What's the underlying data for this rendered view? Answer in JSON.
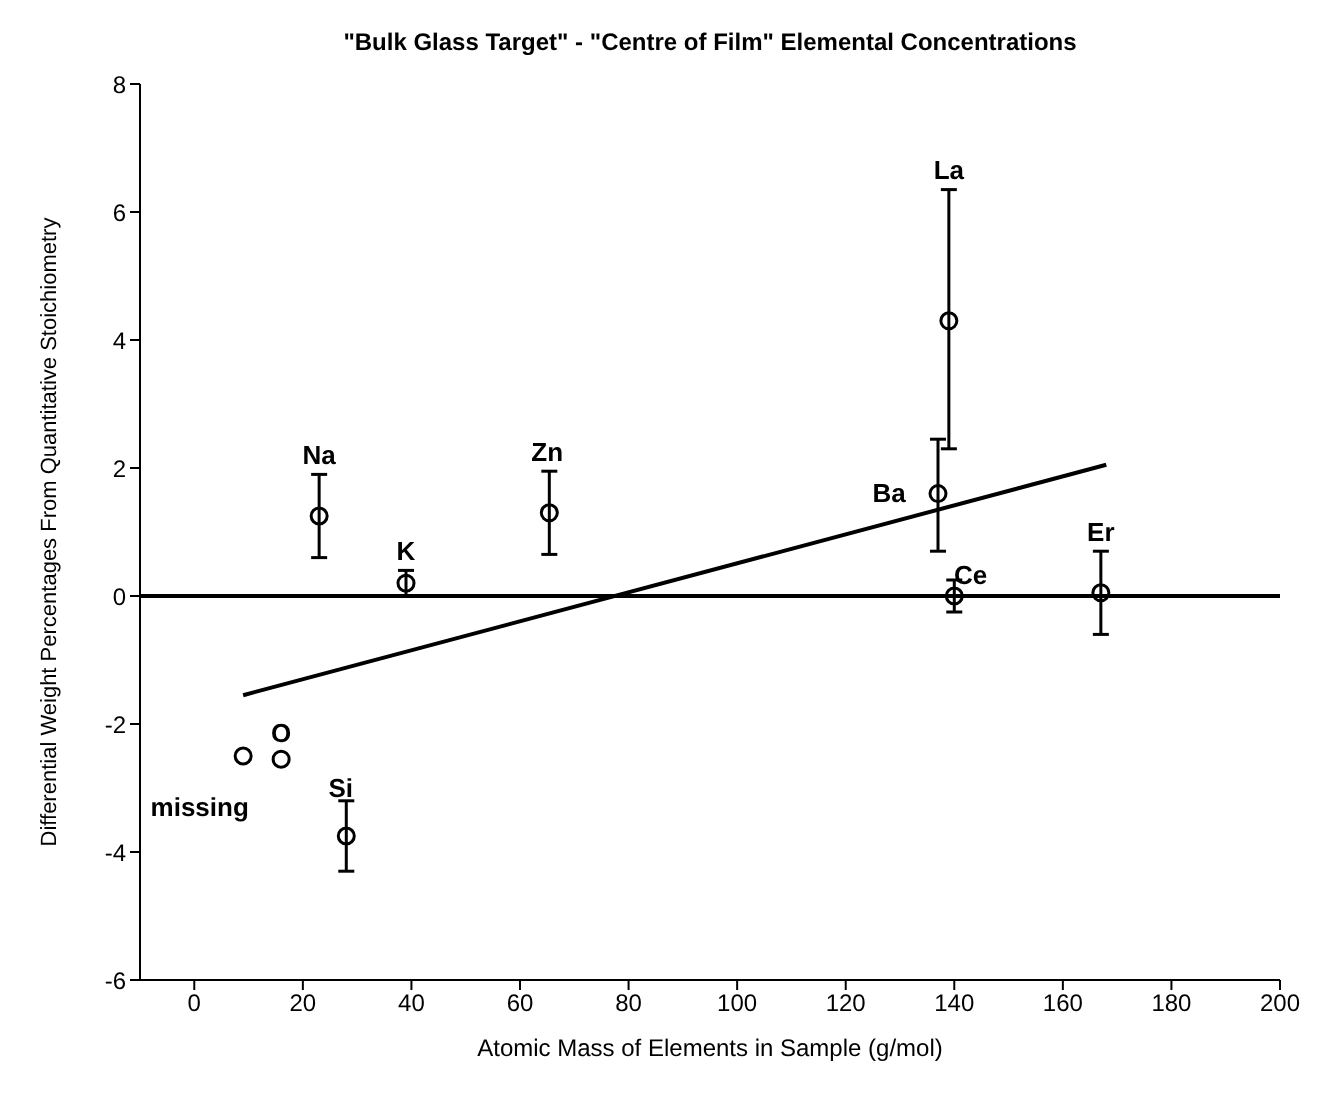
{
  "chart_data": {
    "type": "scatter",
    "title": "\"Bulk Glass Target\" - \"Centre of Film\" Elemental Concentrations",
    "xlabel": "Atomic Mass of Elements in Sample (g/mol)",
    "ylabel": "Differential Weight Percentages From Quantitative Stoichiometry",
    "xlim": [
      -10,
      200
    ],
    "xticks": [
      0,
      20,
      40,
      60,
      80,
      100,
      120,
      140,
      160,
      180,
      200
    ],
    "ylim": [
      -6,
      8
    ],
    "yticks": [
      -6,
      -4,
      -2,
      0,
      2,
      4,
      6,
      8
    ],
    "marker": "circle",
    "series": [
      {
        "color": "#000000",
        "x": [
          9,
          16,
          23,
          28,
          39,
          65.4,
          137,
          139,
          140,
          167
        ],
        "values": [
          -2.5,
          -2.55,
          1.25,
          -3.75,
          0.2,
          1.3,
          1.6,
          4.3,
          0,
          0.05
        ],
        "errors": [
          null,
          null,
          [
            0.6,
            1.9
          ],
          [
            -4.3,
            -3.2
          ],
          [
            0,
            0.4
          ],
          [
            0.65,
            1.95
          ],
          [
            0.7,
            2.45
          ],
          [
            2.3,
            6.35
          ],
          [
            -0.25,
            0.25
          ],
          [
            -0.6,
            0.7
          ]
        ]
      },
      {
        "type": "line",
        "marker": "none",
        "color": "#000000",
        "x": [
          9,
          168
        ],
        "values": [
          -1.55,
          2.05
        ]
      }
    ],
    "ref_lines": [
      {
        "axis": "y",
        "value": 0,
        "color": "#000000"
      }
    ],
    "annotations": [
      {
        "text": "Na",
        "x": 23,
        "y": 2.0
      },
      {
        "text": "K",
        "x": 39,
        "y": 0.5
      },
      {
        "text": "Zn",
        "x": 65,
        "y": 2.05
      },
      {
        "text": "La",
        "x": 139,
        "y": 6.45
      },
      "Ba",
      "Ce",
      {
        "text": "Er",
        "x": 167,
        "y": 0.8
      },
      {
        "text": "O",
        "x": 16,
        "y": -2.35
      },
      {
        "text": "Si",
        "x": 27,
        "y": -3.2
      },
      "missing"
    ]
  }
}
